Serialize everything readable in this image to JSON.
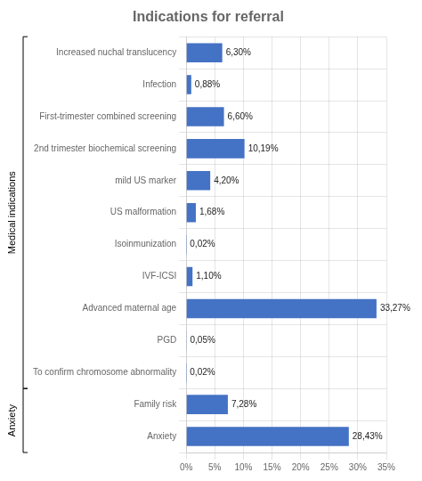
{
  "chart_data": {
    "type": "bar",
    "orientation": "horizontal",
    "title": "Indications for referral",
    "categories": [
      "Anxiety",
      "Family risk",
      "To confirm chromosome abnormality",
      "PGD",
      "Advanced maternal age",
      "IVF-ICSI",
      "Isoinmunization",
      "US malformation",
      "mild US marker",
      "2nd trimester biochemical screening",
      "First-trimester combined screening",
      "Infection",
      "Increased nuchal translucency"
    ],
    "values": [
      28.43,
      7.28,
      0.02,
      0.05,
      33.27,
      1.1,
      0.02,
      1.68,
      4.2,
      10.19,
      6.6,
      0.88,
      6.3
    ],
    "value_labels": [
      "28,43%",
      "7,28%",
      "0,02%",
      "0,05%",
      "33,27%",
      "1,10%",
      "0,02%",
      "1,68%",
      "4,20%",
      "10,19%",
      "6,60%",
      "0,88%",
      "6,30%"
    ],
    "data_labels": true,
    "color": "#4472C4",
    "xlim": [
      0,
      35
    ],
    "xticks": [
      {
        "value": 0,
        "label": "0%"
      },
      {
        "value": 5,
        "label": "5%"
      },
      {
        "value": 10,
        "label": "10%"
      },
      {
        "value": 15,
        "label": "15%"
      },
      {
        "value": 20,
        "label": "20%"
      },
      {
        "value": 25,
        "label": "25%"
      },
      {
        "value": 30,
        "label": "30%"
      },
      {
        "value": 35,
        "label": "35%"
      }
    ],
    "grid": true,
    "annotations": [
      {
        "text": "Medical indications",
        "from": "To confirm chromosome abnormality",
        "to": "Increased nuchal translucency"
      },
      {
        "text": "Anxiety",
        "from": "Anxiety",
        "to": "Family risk"
      }
    ]
  }
}
